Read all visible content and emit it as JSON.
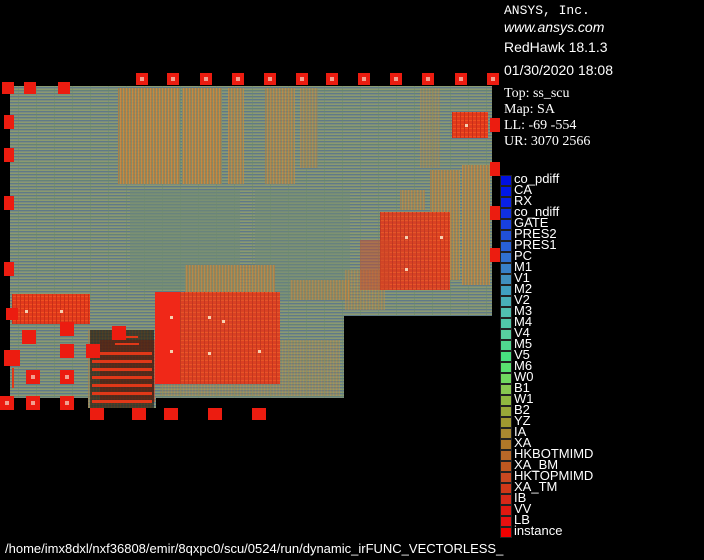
{
  "header": {
    "vendor": "ANSYS, Inc.",
    "website": "www.ansys.com",
    "product": "RedHawk 18.1.3",
    "datetime": "01/30/2020 18:08"
  },
  "design_info": {
    "top": "Top: ss_scu",
    "map": "Map: SA",
    "ll": "LL: -69 -554",
    "ur": "UR: 3070 2566"
  },
  "legend": {
    "items": [
      {
        "label": "co_pdiff",
        "color": "#0010e0"
      },
      {
        "label": "CA",
        "color": "#0018e8"
      },
      {
        "label": "RX",
        "color": "#0820e8"
      },
      {
        "label": "co_ndiff",
        "color": "#1030e0"
      },
      {
        "label": "GATE",
        "color": "#1840e0"
      },
      {
        "label": "PRES2",
        "color": "#2050d8"
      },
      {
        "label": "PRES1",
        "color": "#2860d8"
      },
      {
        "label": "PC",
        "color": "#3070d0"
      },
      {
        "label": "M1",
        "color": "#3880c8"
      },
      {
        "label": "V1",
        "color": "#4090c0"
      },
      {
        "label": "M2",
        "color": "#40a0c0"
      },
      {
        "label": "V2",
        "color": "#48b0b8"
      },
      {
        "label": "M3",
        "color": "#50c0b0"
      },
      {
        "label": "M4",
        "color": "#50c8a8"
      },
      {
        "label": "V4",
        "color": "#58d0a0"
      },
      {
        "label": "M5",
        "color": "#50d890"
      },
      {
        "label": "V5",
        "color": "#48e080"
      },
      {
        "label": "M6",
        "color": "#58e070"
      },
      {
        "label": "W0",
        "color": "#70d860"
      },
      {
        "label": "B1",
        "color": "#88c850"
      },
      {
        "label": "W1",
        "color": "#90b840"
      },
      {
        "label": "B2",
        "color": "#98a838"
      },
      {
        "label": "YZ",
        "color": "#a09830"
      },
      {
        "label": "IA",
        "color": "#a88830"
      },
      {
        "label": "XA",
        "color": "#b07828"
      },
      {
        "label": "HKBOTMIMD",
        "color": "#b86828"
      },
      {
        "label": "XA_BM",
        "color": "#c05820"
      },
      {
        "label": "HKTOPMIMD",
        "color": "#c84820"
      },
      {
        "label": "XA_TM",
        "color": "#d03818"
      },
      {
        "label": "IB",
        "color": "#d82818"
      },
      {
        "label": "VV",
        "color": "#e01810"
      },
      {
        "label": "LB",
        "color": "#e81010"
      },
      {
        "label": "instance",
        "color": "#f00000"
      }
    ]
  },
  "status": {
    "path": "/home/imx8dxl/nxf36808/emir/8qxpc0/scu/0524/run/dynamic_irFUNC_VECTORLESS_"
  }
}
